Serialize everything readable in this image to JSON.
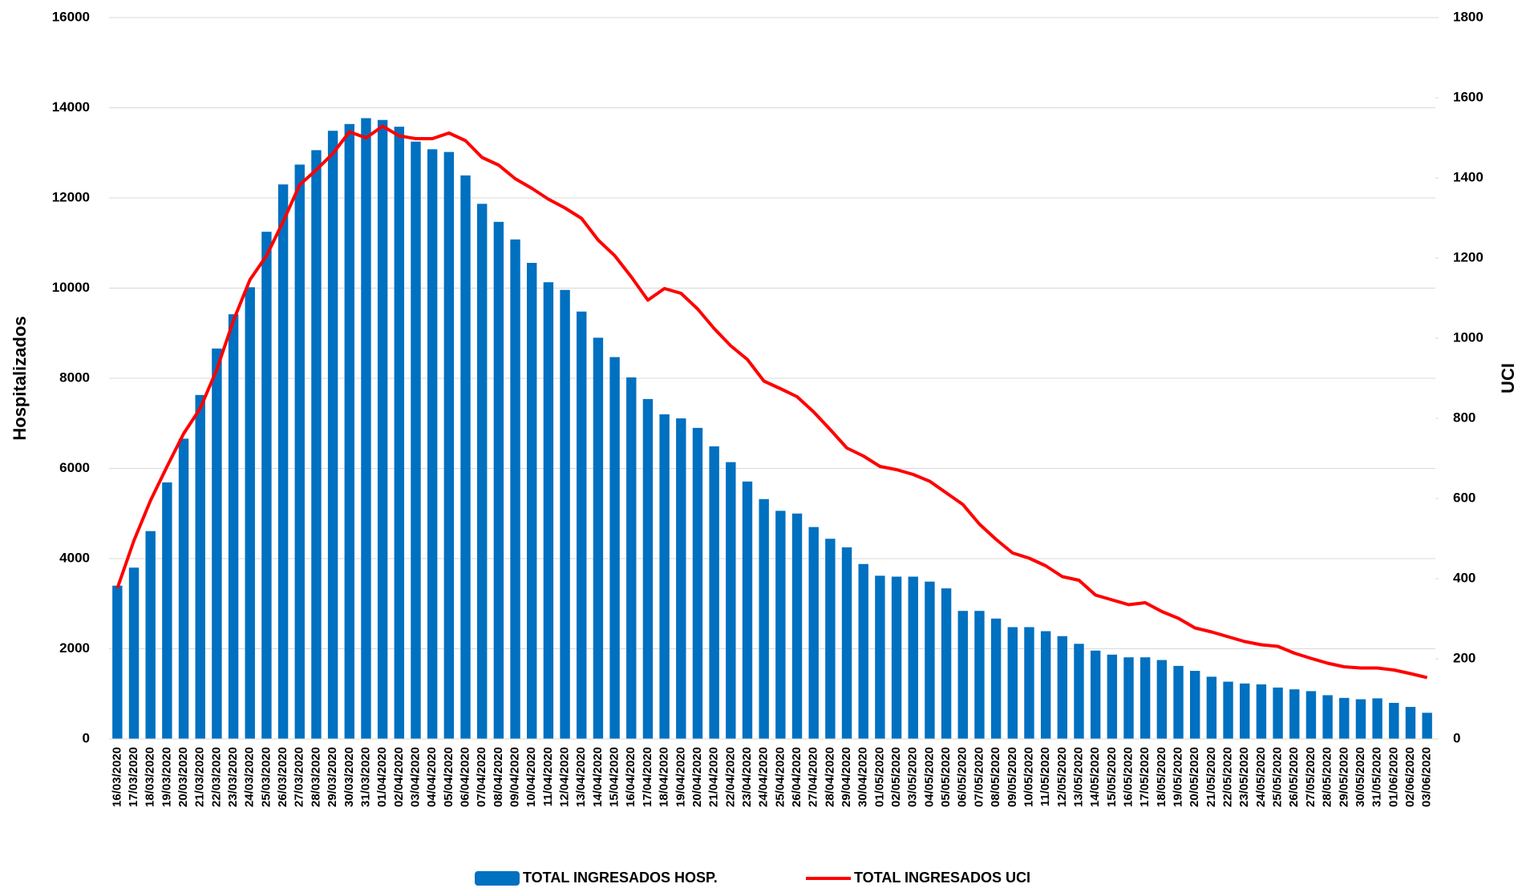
{
  "chart_data": {
    "type": "bar",
    "categories": [
      "16/03/2020",
      "17/03/2020",
      "18/03/2020",
      "19/03/2020",
      "20/03/2020",
      "21/03/2020",
      "22/03/2020",
      "23/03/2020",
      "24/03/2020",
      "25/03/2020",
      "26/03/2020",
      "27/03/2020",
      "28/03/2020",
      "29/03/2020",
      "30/03/2020",
      "31/03/2020",
      "01/04/2020",
      "02/04/2020",
      "03/04/2020",
      "04/04/2020",
      "05/04/2020",
      "06/04/2020",
      "07/04/2020",
      "08/04/2020",
      "09/04/2020",
      "10/04/2020",
      "11/04/2020",
      "12/04/2020",
      "13/04/2020",
      "14/04/2020",
      "15/04/2020",
      "16/04/2020",
      "17/04/2020",
      "18/04/2020",
      "19/04/2020",
      "20/04/2020",
      "21/04/2020",
      "22/04/2020",
      "23/04/2020",
      "24/04/2020",
      "25/04/2020",
      "26/04/2020",
      "27/04/2020",
      "28/04/2020",
      "29/04/2020",
      "30/04/2020",
      "01/05/2020",
      "02/05/2020",
      "03/05/2020",
      "04/05/2020",
      "05/05/2020",
      "06/05/2020",
      "07/05/2020",
      "08/05/2020",
      "09/05/2020",
      "10/05/2020",
      "11/05/2020",
      "12/05/2020",
      "13/05/2020",
      "14/05/2020",
      "15/05/2020",
      "16/05/2020",
      "17/05/2020",
      "18/05/2020",
      "19/05/2020",
      "20/05/2020",
      "21/05/2020",
      "22/05/2020",
      "23/05/2020",
      "24/05/2020",
      "25/05/2020",
      "26/05/2020",
      "27/05/2020",
      "28/05/2020",
      "29/05/2020",
      "30/05/2020",
      "31/05/2020",
      "01/06/2020",
      "02/06/2020",
      "03/06/2020"
    ],
    "series": [
      {
        "name": "TOTAL INGRESADOS HOSP.",
        "type": "bar",
        "color": "#0070c0",
        "values": [
          3400,
          3800,
          4610,
          5690,
          6660,
          7630,
          8660,
          9420,
          10020,
          11250,
          12300,
          12740,
          13060,
          13490,
          13640,
          13770,
          13730,
          13580,
          13250,
          13080,
          13020,
          12500,
          11870,
          11470,
          11080,
          10560,
          10130,
          9960,
          9480,
          8900,
          8470,
          8020,
          7540,
          7200,
          7110,
          6900,
          6490,
          6140,
          5710,
          5320,
          5060,
          5000,
          4700,
          4440,
          4250,
          3880,
          3620,
          3600,
          3600,
          3490,
          3340,
          2840,
          2840,
          2670,
          2480,
          2480,
          2390,
          2280,
          2110,
          1960,
          1870,
          1810,
          1810,
          1750,
          1620,
          1510,
          1380,
          1270,
          1230,
          1210,
          1140,
          1100,
          1060,
          970,
          910,
          880,
          900,
          800,
          710,
          580
        ]
      },
      {
        "name": "TOTAL INGRESADOS UCI",
        "type": "line",
        "axis": "y2",
        "color": "#ff0000",
        "values": [
          376,
          495,
          595,
          680,
          762,
          825,
          922,
          1044,
          1146,
          1206,
          1291,
          1383,
          1420,
          1461,
          1515,
          1500,
          1529,
          1505,
          1498,
          1498,
          1512,
          1493,
          1451,
          1432,
          1398,
          1374,
          1347,
          1325,
          1299,
          1245,
          1206,
          1153,
          1095,
          1124,
          1112,
          1073,
          1024,
          981,
          947,
          893,
          874,
          854,
          816,
          772,
          726,
          706,
          680,
          672,
          660,
          643,
          614,
          585,
          536,
          498,
          464,
          451,
          432,
          405,
          396,
          359,
          347,
          335,
          340,
          318,
          301,
          277,
          267,
          255,
          243,
          235,
          231,
          214,
          201,
          189,
          180,
          177,
          177,
          172,
          163,
          153
        ]
      }
    ],
    "y_label": "Hospitalizados",
    "y2_label": "UCI",
    "ylim": [
      0,
      16000
    ],
    "yticks": [
      0,
      2000,
      4000,
      6000,
      8000,
      10000,
      12000,
      14000,
      16000
    ],
    "y2lim": [
      0,
      1800
    ],
    "y2ticks": [
      0,
      200,
      400,
      600,
      800,
      1000,
      1200,
      1400,
      1600,
      1800
    ],
    "grid": true,
    "legend": "bottom"
  }
}
